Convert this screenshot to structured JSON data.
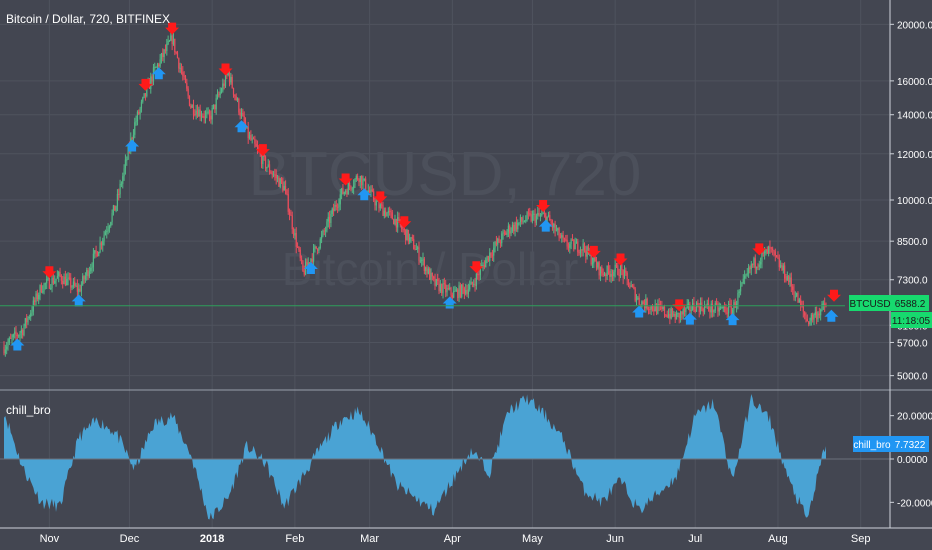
{
  "header": {
    "symbol_title": "Bitcoin / Dollar, 720, BITFINEX",
    "watermark_symbol": "BTCUSD, 720",
    "watermark_desc": "Bitcoin / Dollar"
  },
  "colors": {
    "background": "#434651",
    "grid": "#4f535e",
    "candle_up": "#53b987",
    "candle_down": "#eb4d5c",
    "sell_arrow": "#ff1a1a",
    "buy_arrow": "#2196f3",
    "price_line": "#2e9e5b",
    "price_badge": "#17d96e",
    "oscillator": "#4aa3d4",
    "text": "#ffffff"
  },
  "price_scale": {
    "ticks": [
      "20000.0",
      "16000.0",
      "14000.0",
      "12000.0",
      "10000.0",
      "8500.0",
      "7300.0",
      "6100.0",
      "5700.0",
      "5000.0"
    ],
    "last_label": "BTCUSD",
    "last_value": "6588.2",
    "countdown": "11:18:05"
  },
  "oscillator": {
    "name": "chill_bro",
    "badge_label": "chill_bro",
    "badge_value": "7.7322",
    "ticks": [
      "20.0000",
      "0.0000",
      "-20.0000"
    ]
  },
  "time_axis": {
    "labels": [
      "Nov",
      "Dec",
      "2018",
      "Feb",
      "Mar",
      "Apr",
      "May",
      "Jun",
      "Jul",
      "Aug",
      "Sep"
    ]
  },
  "chart_data": {
    "type": "candlestick",
    "title": "Bitcoin / Dollar, 720, BITFINEX",
    "y_scale": "log",
    "ylim": [
      4800,
      21500
    ],
    "series": [
      {
        "name": "BTCUSD",
        "x": [
          "2017-10-15",
          "2017-10-22",
          "2017-10-29",
          "2017-11-05",
          "2017-11-12",
          "2017-11-19",
          "2017-11-26",
          "2017-12-03",
          "2017-12-10",
          "2017-12-17",
          "2017-12-24",
          "2017-12-31",
          "2018-01-07",
          "2018-01-14",
          "2018-01-21",
          "2018-01-28",
          "2018-02-04",
          "2018-02-11",
          "2018-02-18",
          "2018-02-25",
          "2018-03-04",
          "2018-03-11",
          "2018-03-18",
          "2018-03-25",
          "2018-04-01",
          "2018-04-08",
          "2018-04-15",
          "2018-04-22",
          "2018-04-29",
          "2018-05-06",
          "2018-05-13",
          "2018-05-20",
          "2018-05-27",
          "2018-06-03",
          "2018-06-10",
          "2018-06-17",
          "2018-06-24",
          "2018-07-01",
          "2018-07-08",
          "2018-07-15",
          "2018-07-22",
          "2018-07-29",
          "2018-08-05",
          "2018-08-12",
          "2018-08-19"
        ],
        "close": [
          5600,
          6000,
          7100,
          7400,
          7000,
          8200,
          9800,
          13500,
          16500,
          18900,
          14500,
          13800,
          16500,
          13000,
          11500,
          10500,
          7500,
          8600,
          10200,
          11000,
          9800,
          9200,
          8300,
          7200,
          6900,
          7100,
          8100,
          8900,
          9300,
          9400,
          8400,
          8300,
          7500,
          7600,
          6700,
          6500,
          6300,
          6600,
          6500,
          6500,
          7700,
          8200,
          7300,
          6200,
          6588
        ]
      }
    ],
    "signals": {
      "sell": [
        "2017-11-01",
        "2017-12-07",
        "2017-12-17",
        "2018-01-06",
        "2018-01-20",
        "2018-02-20",
        "2018-03-05",
        "2018-03-14",
        "2018-04-10",
        "2018-05-05",
        "2018-05-24",
        "2018-06-03",
        "2018-06-25",
        "2018-07-25",
        "2018-08-22"
      ],
      "buy": [
        "2017-10-20",
        "2017-11-12",
        "2017-12-02",
        "2017-12-12",
        "2018-01-12",
        "2018-02-07",
        "2018-02-27",
        "2018-03-31",
        "2018-05-06",
        "2018-06-10",
        "2018-06-29",
        "2018-07-15",
        "2018-08-21"
      ]
    },
    "oscillator": {
      "name": "chill_bro",
      "ylim": [
        -30,
        30
      ],
      "x": [
        "2017-10-15",
        "2017-10-22",
        "2017-10-29",
        "2017-11-05",
        "2017-11-12",
        "2017-11-19",
        "2017-11-26",
        "2017-12-03",
        "2017-12-10",
        "2017-12-17",
        "2017-12-24",
        "2017-12-31",
        "2018-01-07",
        "2018-01-14",
        "2018-01-21",
        "2018-01-28",
        "2018-02-04",
        "2018-02-11",
        "2018-02-18",
        "2018-02-25",
        "2018-03-04",
        "2018-03-11",
        "2018-03-18",
        "2018-03-25",
        "2018-04-01",
        "2018-04-08",
        "2018-04-15",
        "2018-04-22",
        "2018-04-29",
        "2018-05-06",
        "2018-05-13",
        "2018-05-20",
        "2018-05-27",
        "2018-06-03",
        "2018-06-10",
        "2018-06-17",
        "2018-06-24",
        "2018-07-01",
        "2018-07-08",
        "2018-07-15",
        "2018-07-22",
        "2018-07-29",
        "2018-08-05",
        "2018-08-12",
        "2018-08-19"
      ],
      "values": [
        22,
        -4,
        -20,
        -22,
        10,
        18,
        12,
        -5,
        16,
        20,
        2,
        -28,
        -18,
        6,
        -2,
        -22,
        -8,
        6,
        18,
        22,
        8,
        -12,
        -18,
        -24,
        -10,
        4,
        -6,
        22,
        28,
        20,
        8,
        -14,
        -20,
        -10,
        -24,
        -16,
        -8,
        20,
        26,
        -10,
        28,
        18,
        -10,
        -28,
        7.7322
      ]
    },
    "price_ticks": [
      20000,
      16000,
      14000,
      12000,
      10000,
      8500,
      7300,
      6100,
      5700,
      5000
    ],
    "oscillator_ticks": [
      20,
      0,
      -20
    ],
    "last_price": 6588.2
  }
}
